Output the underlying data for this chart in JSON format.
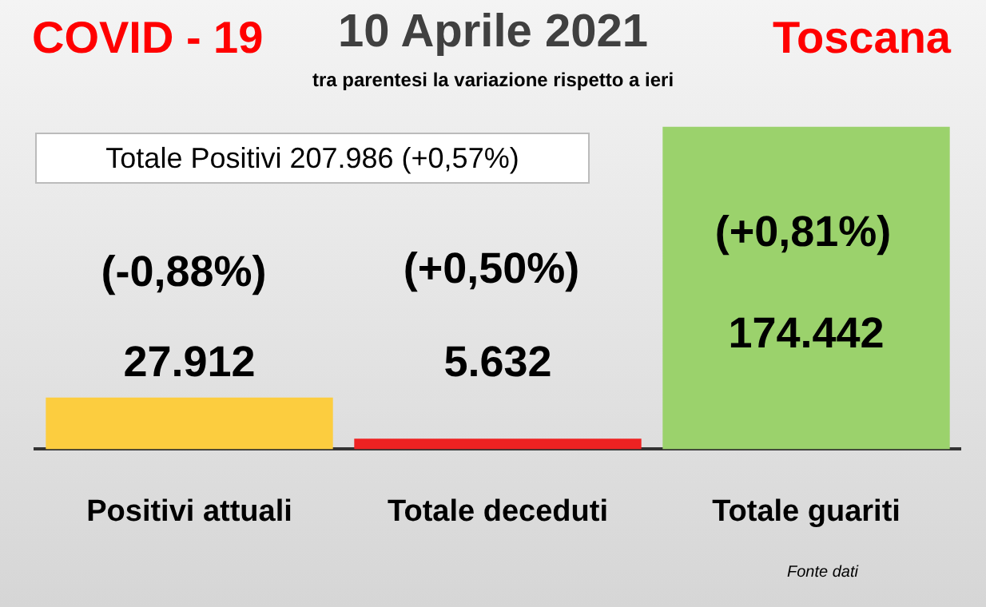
{
  "chart_data": {
    "type": "bar",
    "title": "10 Aprile 2021",
    "subtitle": "tra parentesi la variazione rispetto a ieri",
    "categories": [
      "Positivi attuali",
      "Totale deceduti",
      "Totale guariti"
    ],
    "values": [
      27912,
      5632,
      174442
    ],
    "colors": [
      "#fccd3f",
      "#ee2222",
      "#9bd26c"
    ],
    "value_labels": [
      "27.912",
      "5.632",
      "174.442"
    ],
    "tick_labels": "x",
    "legend": false,
    "annotations": [
      "COVID - 19",
      "Toscana",
      "Totale Positivi   207.986 (+0,57%)",
      "(-0,88%)",
      "(+0,50%)",
      "(+0,81%)",
      "Fonte dati"
    ]
  }
}
